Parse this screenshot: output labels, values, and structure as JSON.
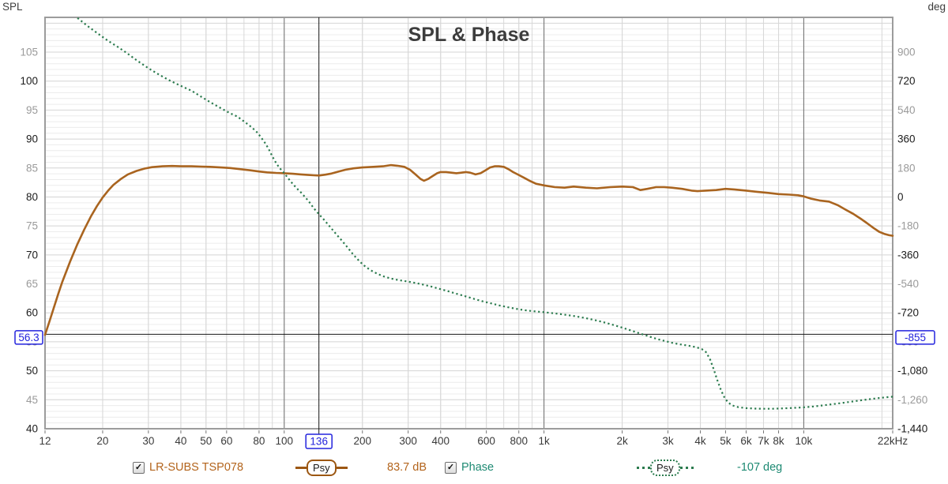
{
  "icons": {
    "checkbox_check": "✓"
  },
  "colors": {
    "spl_trace": "#a9641f",
    "phase_trace": "#2b7b4e",
    "spl_text": "#b3641c",
    "phase_text": "#1e8a73",
    "cursor_blue": "#2323dd",
    "grid_minor": "#ececec",
    "grid_mid": "#d4d4d4",
    "grid_vminor": "#d8d8d8",
    "grid_major_dark": "#6e6e6e",
    "axis_gray_label": "#9a9a9a",
    "axis_black_label": "#1c1c1c",
    "border": "#9c9c9c",
    "title": "#3d3d3d"
  },
  "chart_data": {
    "type": "line",
    "title": "SPL & Phase",
    "x_axis": {
      "unit": "Hz",
      "scale": "log",
      "min": 12,
      "max": 22000,
      "ticks": [
        {
          "f": 12,
          "label": "12"
        },
        {
          "f": 20,
          "label": "20"
        },
        {
          "f": 30,
          "label": "30"
        },
        {
          "f": 40,
          "label": "40"
        },
        {
          "f": 50,
          "label": "50"
        },
        {
          "f": 60,
          "label": "60"
        },
        {
          "f": 80,
          "label": "80"
        },
        {
          "f": 100,
          "label": "100"
        },
        {
          "f": 200,
          "label": "200"
        },
        {
          "f": 300,
          "label": "300"
        },
        {
          "f": 400,
          "label": "400"
        },
        {
          "f": 600,
          "label": "600"
        },
        {
          "f": 800,
          "label": "800"
        },
        {
          "f": 1000,
          "label": "1k"
        },
        {
          "f": 2000,
          "label": "2k"
        },
        {
          "f": 3000,
          "label": "3k"
        },
        {
          "f": 4000,
          "label": "4k"
        },
        {
          "f": 5000,
          "label": "5k"
        },
        {
          "f": 6000,
          "label": "6k"
        },
        {
          "f": 7000,
          "label": "7k"
        },
        {
          "f": 8000,
          "label": "8k"
        },
        {
          "f": 10000,
          "label": "10k"
        },
        {
          "f": 22000,
          "label": "22kHz"
        }
      ],
      "minor_gridlines": [
        20,
        30,
        40,
        50,
        60,
        70,
        80,
        90,
        200,
        300,
        400,
        500,
        600,
        700,
        800,
        900,
        2000,
        3000,
        4000,
        5000,
        6000,
        7000,
        8000,
        9000,
        20000
      ],
      "major_gridlines": [
        100,
        1000,
        10000
      ]
    },
    "left_axis": {
      "unit": "SPL",
      "min": 40,
      "max": 111,
      "tick_values": [
        40,
        45,
        50,
        55,
        60,
        65,
        70,
        75,
        80,
        85,
        90,
        95,
        100,
        105
      ]
    },
    "right_axis": {
      "unit": "deg",
      "deg_at_105dB": 900,
      "deg_per_dB": 36,
      "tick_values": [
        900,
        720,
        540,
        360,
        180,
        0,
        -180,
        -360,
        -540,
        -720,
        -900,
        -1080,
        -1260,
        -1440
      ]
    },
    "cursor": {
      "freq": 136,
      "freq_label": "136",
      "level": 56.3,
      "level_label": "56.3",
      "deg_label": "-855"
    },
    "series": [
      {
        "name": "LR-SUBS TSP078",
        "axis": "left",
        "style": "solid",
        "color": "#a9641f",
        "smoothing": "Psy",
        "cursor_readout": "83.7 dB",
        "points": [
          [
            12,
            56.2
          ],
          [
            12.5,
            58.6
          ],
          [
            13,
            61
          ],
          [
            13.5,
            63.3
          ],
          [
            14,
            65.4
          ],
          [
            15,
            68.9
          ],
          [
            16,
            71.9
          ],
          [
            17,
            74.4
          ],
          [
            18,
            76.6
          ],
          [
            19,
            78.4
          ],
          [
            20,
            79.9
          ],
          [
            21,
            81.1
          ],
          [
            22,
            82.1
          ],
          [
            23.5,
            83.1
          ],
          [
            25,
            83.9
          ],
          [
            27,
            84.5
          ],
          [
            29,
            84.9
          ],
          [
            31,
            85.15
          ],
          [
            34,
            85.3
          ],
          [
            37,
            85.35
          ],
          [
            40,
            85.3
          ],
          [
            44,
            85.3
          ],
          [
            48,
            85.25
          ],
          [
            52,
            85.2
          ],
          [
            57,
            85.1
          ],
          [
            62,
            85
          ],
          [
            68,
            84.8
          ],
          [
            74,
            84.6
          ],
          [
            80,
            84.4
          ],
          [
            86,
            84.25
          ],
          [
            93,
            84.15
          ],
          [
            100,
            84.1
          ],
          [
            108,
            84
          ],
          [
            116,
            83.9
          ],
          [
            124,
            83.8
          ],
          [
            130,
            83.75
          ],
          [
            136,
            83.7
          ],
          [
            144,
            83.85
          ],
          [
            152,
            84.05
          ],
          [
            162,
            84.4
          ],
          [
            172,
            84.7
          ],
          [
            185,
            84.95
          ],
          [
            200,
            85.1
          ],
          [
            220,
            85.2
          ],
          [
            240,
            85.3
          ],
          [
            257,
            85.5
          ],
          [
            272,
            85.4
          ],
          [
            290,
            85.2
          ],
          [
            305,
            84.7
          ],
          [
            320,
            83.9
          ],
          [
            335,
            83.1
          ],
          [
            345,
            82.8
          ],
          [
            358,
            83.1
          ],
          [
            372,
            83.6
          ],
          [
            388,
            84.1
          ],
          [
            400,
            84.3
          ],
          [
            420,
            84.3
          ],
          [
            440,
            84.2
          ],
          [
            460,
            84.1
          ],
          [
            480,
            84.2
          ],
          [
            500,
            84.3
          ],
          [
            520,
            84.2
          ],
          [
            545,
            83.9
          ],
          [
            570,
            84.1
          ],
          [
            595,
            84.6
          ],
          [
            620,
            85.1
          ],
          [
            645,
            85.3
          ],
          [
            670,
            85.3
          ],
          [
            700,
            85.2
          ],
          [
            730,
            84.8
          ],
          [
            760,
            84.3
          ],
          [
            800,
            83.8
          ],
          [
            840,
            83.3
          ],
          [
            880,
            82.8
          ],
          [
            930,
            82.3
          ],
          [
            1000,
            82
          ],
          [
            1100,
            81.7
          ],
          [
            1200,
            81.6
          ],
          [
            1300,
            81.8
          ],
          [
            1450,
            81.6
          ],
          [
            1600,
            81.5
          ],
          [
            1800,
            81.7
          ],
          [
            2000,
            81.8
          ],
          [
            2200,
            81.7
          ],
          [
            2350,
            81.2
          ],
          [
            2500,
            81.4
          ],
          [
            2700,
            81.7
          ],
          [
            2900,
            81.7
          ],
          [
            3100,
            81.6
          ],
          [
            3400,
            81.4
          ],
          [
            3700,
            81.1
          ],
          [
            3900,
            81
          ],
          [
            4200,
            81.1
          ],
          [
            4600,
            81.2
          ],
          [
            5000,
            81.4
          ],
          [
            5400,
            81.3
          ],
          [
            6000,
            81.1
          ],
          [
            6600,
            80.9
          ],
          [
            7300,
            80.7
          ],
          [
            8000,
            80.5
          ],
          [
            8800,
            80.4
          ],
          [
            9500,
            80.3
          ],
          [
            10000,
            80.1
          ],
          [
            10700,
            79.7
          ],
          [
            11500,
            79.4
          ],
          [
            12500,
            79.2
          ],
          [
            13500,
            78.6
          ],
          [
            14500,
            77.8
          ],
          [
            15500,
            77.1
          ],
          [
            16500,
            76.3
          ],
          [
            17500,
            75.5
          ],
          [
            18500,
            74.7
          ],
          [
            19500,
            74
          ],
          [
            20500,
            73.6
          ],
          [
            21300,
            73.4
          ],
          [
            22000,
            73.3
          ]
        ]
      },
      {
        "name": "Phase",
        "axis": "right",
        "style": "dotted",
        "color": "#2b7b4e",
        "smoothing": "Psy",
        "cursor_readout": "-107 deg",
        "points": [
          [
            16,
            1112
          ],
          [
            17.5,
            1062
          ],
          [
            19,
            1020
          ],
          [
            21,
            970
          ],
          [
            23,
            930
          ],
          [
            25,
            890
          ],
          [
            27,
            850
          ],
          [
            30,
            800
          ],
          [
            33,
            760
          ],
          [
            36,
            726
          ],
          [
            40,
            690
          ],
          [
            44,
            660
          ],
          [
            48,
            622
          ],
          [
            52,
            588
          ],
          [
            57,
            552
          ],
          [
            62,
            520
          ],
          [
            66,
            500
          ],
          [
            70,
            470
          ],
          [
            74,
            440
          ],
          [
            78,
            408
          ],
          [
            81,
            375
          ],
          [
            84,
            340
          ],
          [
            87,
            300
          ],
          [
            90,
            252
          ],
          [
            93,
            212
          ],
          [
            96,
            180
          ],
          [
            100,
            148
          ],
          [
            104,
            112
          ],
          [
            108,
            80
          ],
          [
            112,
            52
          ],
          [
            116,
            28
          ],
          [
            120,
            2
          ],
          [
            125,
            -32
          ],
          [
            130,
            -70
          ],
          [
            136,
            -107
          ],
          [
            142,
            -140
          ],
          [
            150,
            -185
          ],
          [
            158,
            -228
          ],
          [
            166,
            -268
          ],
          [
            175,
            -312
          ],
          [
            185,
            -360
          ],
          [
            195,
            -400
          ],
          [
            205,
            -432
          ],
          [
            215,
            -455
          ],
          [
            228,
            -477
          ],
          [
            242,
            -494
          ],
          [
            258,
            -507
          ],
          [
            275,
            -516
          ],
          [
            295,
            -524
          ],
          [
            315,
            -532
          ],
          [
            340,
            -543
          ],
          [
            365,
            -555
          ],
          [
            395,
            -570
          ],
          [
            430,
            -587
          ],
          [
            465,
            -603
          ],
          [
            500,
            -618
          ],
          [
            540,
            -634
          ],
          [
            580,
            -648
          ],
          [
            625,
            -661
          ],
          [
            675,
            -674
          ],
          [
            725,
            -685
          ],
          [
            780,
            -695
          ],
          [
            840,
            -703
          ],
          [
            900,
            -709
          ],
          [
            1000,
            -716
          ],
          [
            1100,
            -723
          ],
          [
            1200,
            -731
          ],
          [
            1320,
            -741
          ],
          [
            1450,
            -753
          ],
          [
            1600,
            -768
          ],
          [
            1750,
            -784
          ],
          [
            1950,
            -806
          ],
          [
            2150,
            -828
          ],
          [
            2350,
            -849
          ],
          [
            2550,
            -868
          ],
          [
            2750,
            -884
          ],
          [
            2950,
            -897
          ],
          [
            3150,
            -908
          ],
          [
            3350,
            -916
          ],
          [
            3600,
            -924
          ],
          [
            3850,
            -933
          ],
          [
            4050,
            -945
          ],
          [
            4200,
            -963
          ],
          [
            4350,
            -1005
          ],
          [
            4500,
            -1070
          ],
          [
            4650,
            -1140
          ],
          [
            4800,
            -1200
          ],
          [
            4950,
            -1245
          ],
          [
            5100,
            -1275
          ],
          [
            5300,
            -1295
          ],
          [
            5600,
            -1306
          ],
          [
            6000,
            -1312
          ],
          [
            6500,
            -1315
          ],
          [
            7000,
            -1316
          ],
          [
            7600,
            -1316
          ],
          [
            8200,
            -1314
          ],
          [
            9000,
            -1311
          ],
          [
            10000,
            -1307
          ],
          [
            11000,
            -1301
          ],
          [
            12000,
            -1294
          ],
          [
            13000,
            -1287
          ],
          [
            14000,
            -1280
          ],
          [
            15200,
            -1272
          ],
          [
            16500,
            -1264
          ],
          [
            18000,
            -1256
          ],
          [
            19500,
            -1249
          ],
          [
            21000,
            -1244
          ],
          [
            22000,
            -1241
          ]
        ]
      }
    ]
  },
  "legend": {
    "items": [
      {
        "label": "LR-SUBS TSP078",
        "checked": true,
        "smoothing_badge": "Psy",
        "readout": "83.7 dB"
      },
      {
        "label": "Phase",
        "checked": true,
        "smoothing_badge": "Psy",
        "readout": "-107 deg"
      }
    ]
  }
}
